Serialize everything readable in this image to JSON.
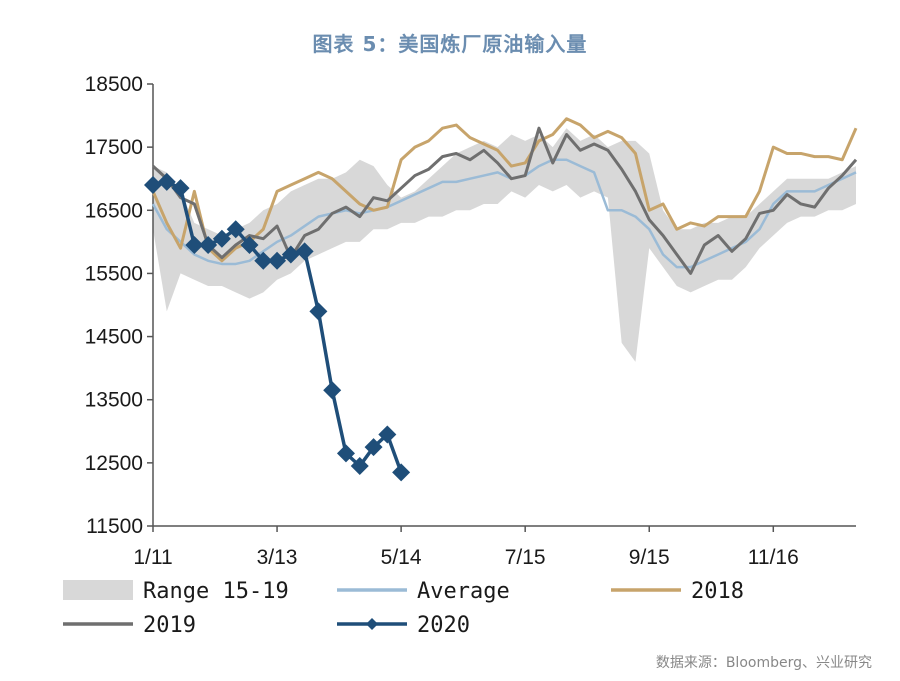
{
  "title": "图表 5：美国炼厂原油输入量",
  "source": "数据来源：Bloomberg、兴业研究",
  "colors": {
    "range": "#d8d8d8",
    "average": "#9bbbd6",
    "y2018": "#c7a46b",
    "y2019": "#6f6f6f",
    "y2020": "#1f4e79"
  },
  "chart_data": {
    "type": "line",
    "title": "图表 5：美国炼厂原油输入量",
    "xlabel": "",
    "ylabel": "",
    "ylim": [
      11500,
      18500
    ],
    "yticks": [
      11500,
      12500,
      13500,
      14500,
      15500,
      16500,
      17500,
      18500
    ],
    "ytick_labels": [
      "11500",
      "12500",
      "13500",
      "14500",
      "15500",
      "16500",
      "17500",
      "18500"
    ],
    "x_index_range": [
      0,
      51
    ],
    "xticks": [
      {
        "label": "1/11",
        "x": 0
      },
      {
        "label": "3/13",
        "x": 9
      },
      {
        "label": "5/14",
        "x": 18
      },
      {
        "label": "7/15",
        "x": 27
      },
      {
        "label": "9/15",
        "x": 36
      },
      {
        "label": "11/16",
        "x": 45
      }
    ],
    "legend_position": "bottom",
    "series": [
      {
        "name": "Range 15-19",
        "kind": "band",
        "x": [
          0,
          1,
          2,
          3,
          4,
          5,
          6,
          7,
          8,
          9,
          10,
          11,
          12,
          13,
          14,
          15,
          16,
          17,
          18,
          19,
          20,
          21,
          22,
          23,
          24,
          25,
          26,
          27,
          28,
          29,
          30,
          31,
          32,
          33,
          34,
          35,
          36,
          37,
          38,
          39,
          40,
          41,
          42,
          43,
          44,
          45,
          46,
          47,
          48,
          49,
          50,
          51
        ],
        "low": [
          16200,
          14900,
          15500,
          15400,
          15300,
          15300,
          15200,
          15100,
          15200,
          15400,
          15500,
          15700,
          15800,
          15900,
          16000,
          16000,
          16200,
          16200,
          16300,
          16300,
          16400,
          16400,
          16500,
          16500,
          16600,
          16600,
          16800,
          16700,
          16900,
          16800,
          16900,
          16700,
          16800,
          16700,
          14400,
          14100,
          15900,
          15600,
          15300,
          15200,
          15300,
          15400,
          15400,
          15600,
          15900,
          16100,
          16300,
          16400,
          16400,
          16500,
          16500,
          16600
        ],
        "high": [
          17200,
          17100,
          16800,
          16300,
          16200,
          16100,
          16200,
          16300,
          16500,
          16600,
          16800,
          16900,
          17000,
          17000,
          17100,
          17300,
          17200,
          16900,
          16700,
          16800,
          17000,
          17200,
          17400,
          17500,
          17600,
          17500,
          17700,
          17600,
          17700,
          17500,
          17800,
          17600,
          17700,
          17500,
          17600,
          17600,
          17400,
          16500,
          16200,
          16200,
          16300,
          16300,
          16400,
          16400,
          16600,
          16800,
          17000,
          17000,
          17000,
          17000,
          17100,
          17200
        ]
      },
      {
        "name": "Average",
        "x": [
          0,
          1,
          2,
          3,
          4,
          5,
          6,
          7,
          8,
          9,
          10,
          11,
          12,
          13,
          14,
          15,
          16,
          17,
          18,
          19,
          20,
          21,
          22,
          23,
          24,
          25,
          26,
          27,
          28,
          29,
          30,
          31,
          32,
          33,
          34,
          35,
          36,
          37,
          38,
          39,
          40,
          41,
          42,
          43,
          44,
          45,
          46,
          47,
          48,
          49,
          50,
          51
        ],
        "values": [
          16600,
          16200,
          16000,
          15800,
          15700,
          15650,
          15650,
          15700,
          15850,
          16000,
          16100,
          16250,
          16400,
          16450,
          16500,
          16450,
          16500,
          16550,
          16650,
          16750,
          16850,
          16950,
          16950,
          17000,
          17050,
          17100,
          17000,
          17050,
          17200,
          17300,
          17300,
          17200,
          17100,
          16500,
          16500,
          16400,
          16200,
          15800,
          15600,
          15600,
          15700,
          15800,
          15900,
          16000,
          16200,
          16600,
          16800,
          16800,
          16800,
          16900,
          17000,
          17100
        ]
      },
      {
        "name": "2018",
        "x": [
          0,
          1,
          2,
          3,
          4,
          5,
          6,
          7,
          8,
          9,
          10,
          11,
          12,
          13,
          14,
          15,
          16,
          17,
          18,
          19,
          20,
          21,
          22,
          23,
          24,
          25,
          26,
          27,
          28,
          29,
          30,
          31,
          32,
          33,
          34,
          35,
          36,
          37,
          38,
          39,
          40,
          41,
          42,
          43,
          44,
          45,
          46,
          47,
          48,
          49,
          50,
          51
        ],
        "values": [
          16800,
          16300,
          15900,
          16800,
          15900,
          15700,
          15900,
          16000,
          16200,
          16800,
          16900,
          17000,
          17100,
          17000,
          16800,
          16600,
          16500,
          16550,
          17300,
          17500,
          17600,
          17800,
          17850,
          17650,
          17550,
          17450,
          17200,
          17250,
          17600,
          17700,
          17950,
          17850,
          17650,
          17750,
          17650,
          17400,
          16500,
          16600,
          16200,
          16300,
          16250,
          16400,
          16400,
          16400,
          16800,
          17500,
          17400,
          17400,
          17350,
          17350,
          17300,
          17800
        ]
      },
      {
        "name": "2019",
        "x": [
          0,
          1,
          2,
          3,
          4,
          5,
          6,
          7,
          8,
          9,
          10,
          11,
          12,
          13,
          14,
          15,
          16,
          17,
          18,
          19,
          20,
          21,
          22,
          23,
          24,
          25,
          26,
          27,
          28,
          29,
          30,
          31,
          32,
          33,
          34,
          35,
          36,
          37,
          38,
          39,
          40,
          41,
          42,
          43,
          44,
          45,
          46,
          47,
          48,
          49,
          50,
          51
        ],
        "values": [
          17200,
          17000,
          16700,
          16600,
          15950,
          15750,
          15950,
          16100,
          16050,
          16250,
          15750,
          16100,
          16200,
          16450,
          16550,
          16400,
          16700,
          16650,
          16850,
          17050,
          17150,
          17350,
          17400,
          17300,
          17450,
          17250,
          17000,
          17050,
          17800,
          17250,
          17700,
          17450,
          17550,
          17450,
          17150,
          16800,
          16350,
          16100,
          15800,
          15500,
          15950,
          16100,
          15850,
          16050,
          16450,
          16500,
          16750,
          16600,
          16550,
          16850,
          17050,
          17300
        ]
      },
      {
        "name": "2020",
        "x": [
          0,
          1,
          2,
          3,
          4,
          5,
          6,
          7,
          8,
          9,
          10,
          11,
          12,
          13,
          14,
          15,
          16,
          17,
          18
        ],
        "values": [
          16900,
          16950,
          16850,
          15950,
          15950,
          16050,
          16200,
          15950,
          15700,
          15700,
          15800,
          15850,
          14900,
          13650,
          12650,
          12450,
          12750,
          12950,
          12350
        ]
      }
    ]
  }
}
